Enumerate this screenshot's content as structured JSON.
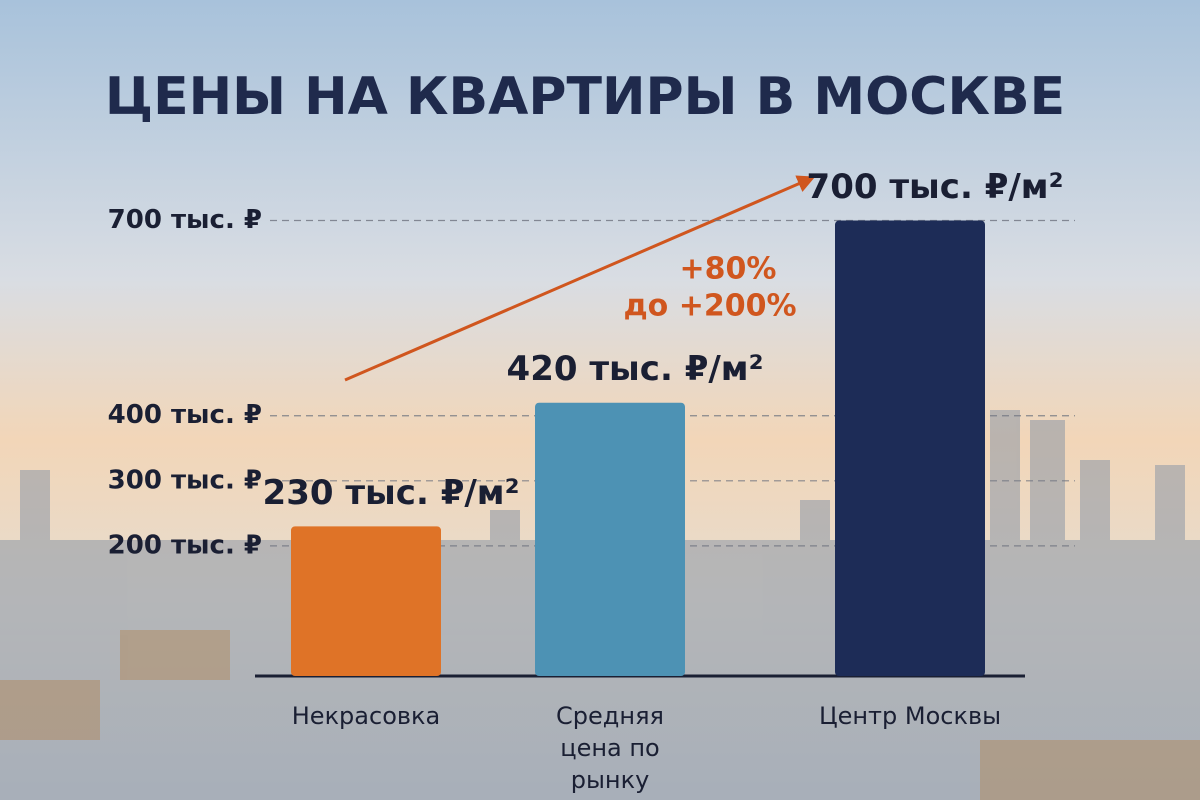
{
  "chart_data": {
    "type": "bar",
    "title": "ЦЕНЫ НА КВАРТИРЫ В МОСКВЕ",
    "categories": [
      "Некрасовка",
      "Средняя цена по рынку",
      "Центр Москвы"
    ],
    "values": [
      230,
      420,
      700
    ],
    "value_labels": [
      "230 тыс. ₽/м²",
      "420 тыс. ₽/м²",
      "700 тыс. ₽/м²"
    ],
    "colors": [
      "#df7327",
      "#4d92b4",
      "#1d2c57"
    ],
    "ylim": [
      0,
      750
    ],
    "yticks": [
      {
        "value": 200,
        "label": "200 тыс. ₽"
      },
      {
        "value": 300,
        "label": "300 тыс. ₽"
      },
      {
        "value": 400,
        "label": "400 тыс. ₽"
      },
      {
        "value": 700,
        "label": "700 тыс. ₽"
      }
    ],
    "grid": true,
    "annotations": [
      "+80%",
      "до +200%"
    ]
  }
}
